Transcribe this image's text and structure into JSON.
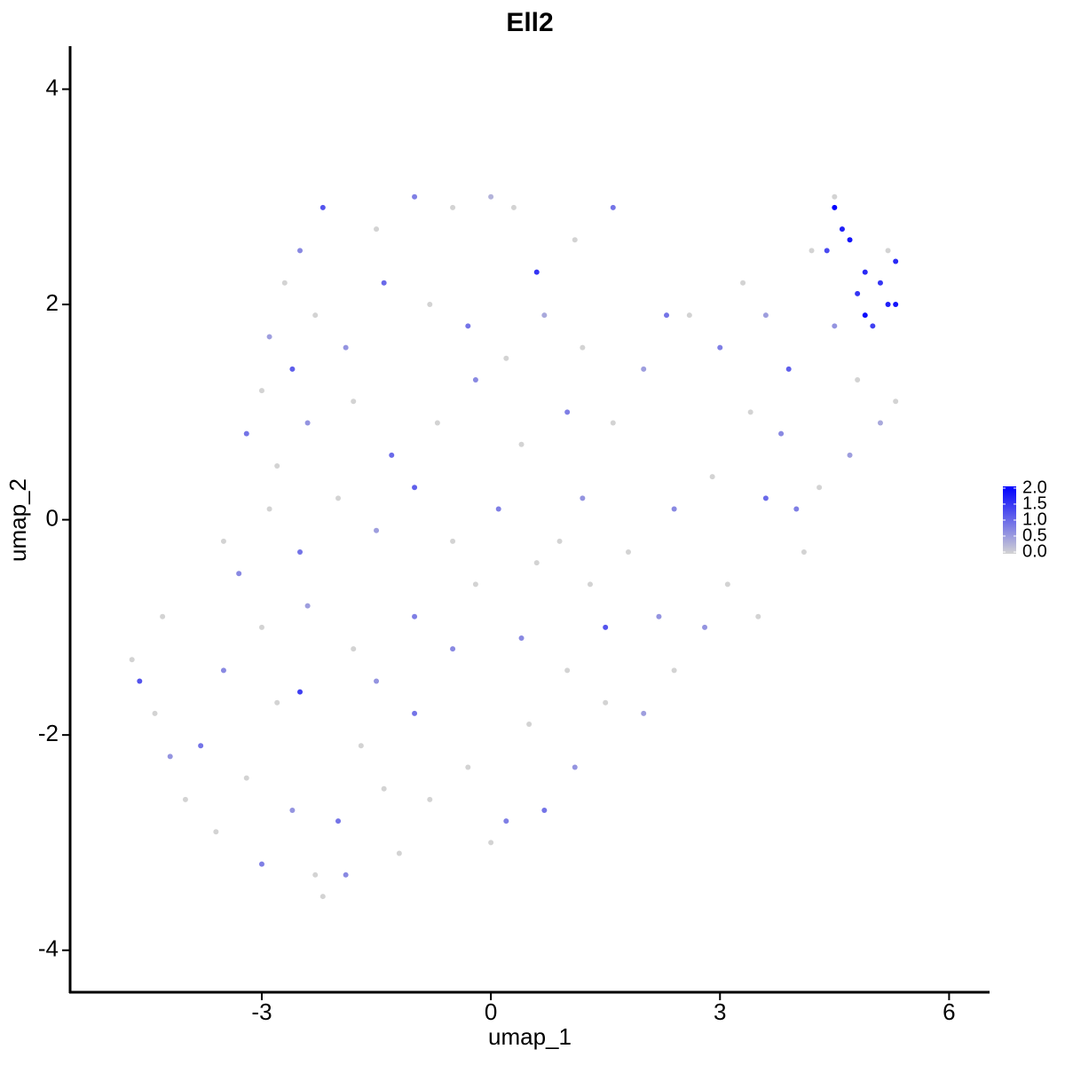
{
  "chart_data": {
    "type": "scatter",
    "title": "Ell2",
    "x_label": "umap_1",
    "y_label": "umap_2",
    "xlim": [
      -5.51,
      6.53
    ],
    "ylim": [
      -4.39,
      4.4
    ],
    "xticks": [
      -3,
      0,
      3,
      6
    ],
    "yticks": [
      -4,
      -2,
      0,
      2,
      4
    ],
    "low_color": "#d3d3d3",
    "high_color": "#0000ff",
    "colorbar_ticks": [
      {
        "value": 0,
        "label": "0.0"
      },
      {
        "value": 0.5,
        "label": "0.5"
      },
      {
        "value": 1,
        "label": "1.0"
      },
      {
        "value": 1.5,
        "label": "1.5"
      },
      {
        "value": 2,
        "label": "2.0"
      }
    ],
    "x": [
      -2.2,
      -1.5,
      -1.0,
      -0.5,
      0.0,
      0.3,
      0.6,
      1.1,
      1.6,
      -2.5,
      -2.7,
      -2.9,
      -2.6,
      -2.3,
      -1.9,
      -1.4,
      -0.8,
      -0.3,
      0.2,
      0.7,
      1.2,
      -3.0,
      -3.2,
      -2.8,
      -2.4,
      -1.8,
      -1.3,
      -0.7,
      -0.2,
      0.4,
      1.0,
      1.6,
      2.0,
      2.3,
      -3.5,
      -3.3,
      -2.9,
      -2.5,
      -2.0,
      -1.5,
      -1.0,
      -0.5,
      0.1,
      0.6,
      1.2,
      1.8,
      2.4,
      2.9,
      2.6,
      3.0,
      3.3,
      3.6,
      3.9,
      4.2,
      4.5,
      4.8,
      5.1,
      5.3,
      3.4,
      3.8,
      4.3,
      4.7,
      3.6,
      3.1,
      2.8,
      2.4,
      2.0,
      4.1,
      3.5,
      4.0,
      4.5,
      4.6,
      4.7,
      4.9,
      5.1,
      5.2,
      4.9,
      5.3,
      5.0,
      4.4,
      5.3,
      4.8,
      4.5,
      5.2,
      -4.7,
      -4.6,
      -4.4,
      -4.2,
      -4.0,
      -3.8,
      -3.6,
      -3.5,
      -3.2,
      -3.0,
      -2.8,
      -2.6,
      -2.5,
      -2.3,
      -2.2,
      -2.0,
      -1.9,
      -1.7,
      -1.5,
      -1.4,
      -1.2,
      -1.0,
      -0.8,
      -0.5,
      -0.3,
      0.0,
      0.2,
      0.5,
      0.7,
      1.0,
      1.1,
      1.5,
      1.5,
      -0.2,
      -1.0,
      -1.8,
      -2.4,
      -3.0,
      0.4,
      1.3,
      2.2,
      0.9,
      -4.3
    ],
    "y": [
      2.9,
      2.7,
      3.0,
      2.9,
      3.0,
      2.9,
      2.3,
      2.6,
      2.9,
      2.5,
      2.2,
      1.7,
      1.4,
      1.9,
      1.6,
      2.2,
      2.0,
      1.8,
      1.5,
      1.9,
      1.6,
      1.2,
      0.8,
      0.5,
      0.9,
      1.1,
      0.6,
      0.9,
      1.3,
      0.7,
      1.0,
      0.9,
      1.4,
      1.9,
      -0.2,
      -0.5,
      0.1,
      -0.3,
      0.2,
      -0.1,
      0.3,
      -0.2,
      0.1,
      -0.4,
      0.2,
      -0.3,
      0.1,
      0.4,
      1.9,
      1.6,
      2.2,
      1.9,
      1.4,
      2.5,
      1.8,
      1.3,
      0.9,
      1.1,
      1.0,
      0.8,
      0.3,
      0.6,
      0.2,
      -0.6,
      -1.0,
      -1.4,
      -1.8,
      -0.3,
      -0.9,
      0.1,
      2.9,
      2.7,
      2.6,
      2.3,
      2.2,
      2.0,
      1.9,
      2.4,
      1.8,
      2.5,
      2.0,
      2.1,
      3.0,
      2.5,
      -1.3,
      -1.5,
      -1.8,
      -2.2,
      -2.6,
      -2.1,
      -2.9,
      -1.4,
      -2.4,
      -3.2,
      -1.7,
      -2.7,
      -1.6,
      -3.3,
      -3.5,
      -2.8,
      -3.3,
      -2.1,
      -1.5,
      -2.5,
      -3.1,
      -1.8,
      -2.6,
      -1.2,
      -2.3,
      -3.0,
      -2.8,
      -1.9,
      -2.7,
      -1.4,
      -2.3,
      -1.7,
      -1.0,
      -0.6,
      -0.9,
      -1.2,
      -0.8,
      -1.0,
      -1.1,
      -0.6,
      -0.9,
      -0.2,
      -0.9
    ],
    "values": [
      1.2,
      0,
      0.8,
      0,
      0.3,
      0,
      1.5,
      0,
      0.9,
      0.7,
      0,
      0.5,
      1.1,
      0,
      0.6,
      1.0,
      0,
      0.9,
      0,
      0.4,
      0,
      0,
      0.9,
      0,
      0.6,
      0,
      1.0,
      0,
      0.7,
      0,
      0.8,
      0,
      0.5,
      0.9,
      0,
      0.7,
      0,
      0.9,
      0,
      0.5,
      1.1,
      0,
      0.8,
      0,
      0.6,
      0,
      0.7,
      0,
      0,
      0.8,
      0,
      0.5,
      1.1,
      0,
      0.6,
      0,
      0.4,
      0,
      0,
      0.7,
      0,
      0.5,
      1.0,
      0,
      0.6,
      0,
      0.5,
      0,
      0,
      0.8,
      2.0,
      1.7,
      1.8,
      1.6,
      1.5,
      1.7,
      1.9,
      1.6,
      1.4,
      1.3,
      1.8,
      1.5,
      0,
      0,
      0,
      1.2,
      0,
      0.6,
      0,
      0.9,
      0,
      0.7,
      0,
      0.8,
      0,
      0.6,
      1.4,
      0,
      0,
      0.9,
      0.7,
      0,
      0.6,
      0,
      0,
      0.9,
      0,
      0.7,
      0,
      0,
      0.8,
      0,
      0.9,
      0,
      0.6,
      0,
      1.2,
      0,
      0.8,
      0,
      0.5,
      0,
      0.7,
      0,
      0.6,
      0,
      0
    ]
  }
}
